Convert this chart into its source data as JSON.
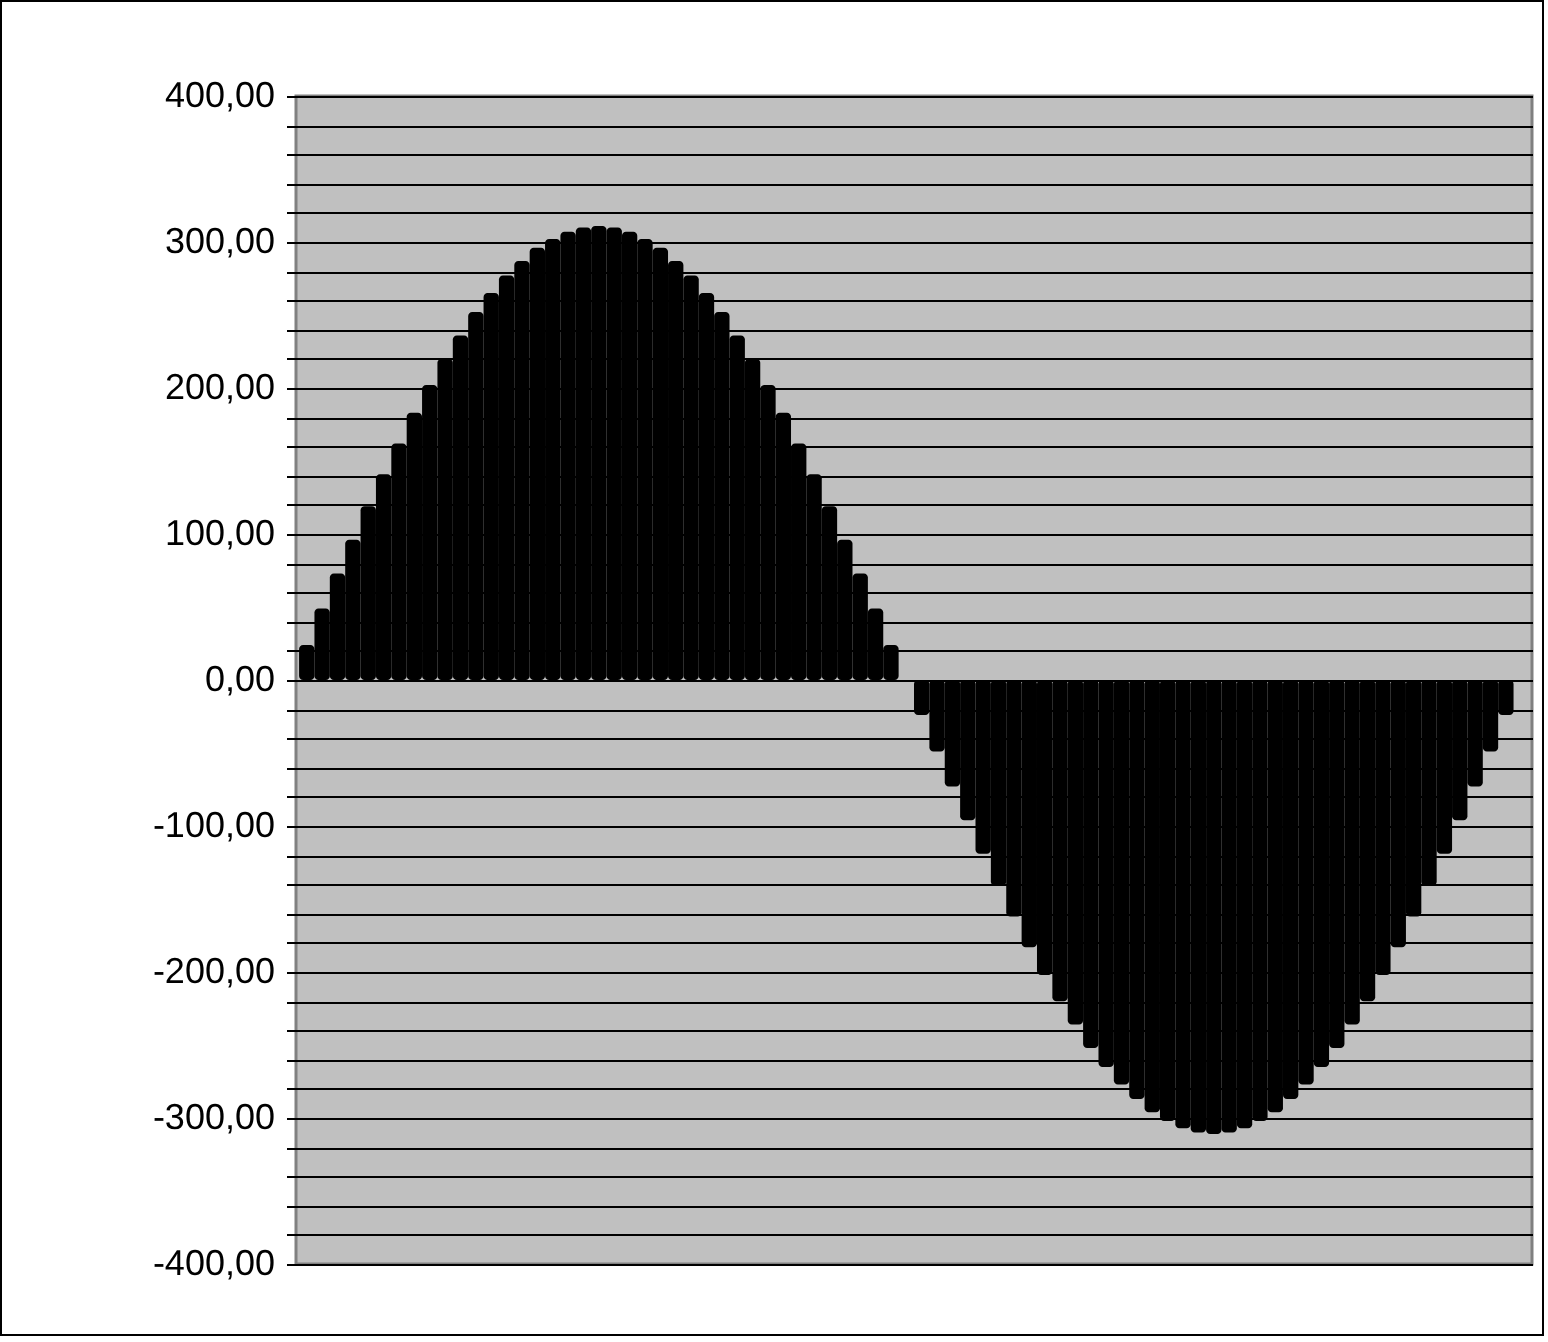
{
  "chart_data": {
    "type": "bar",
    "categories": [
      null,
      null,
      null,
      null,
      null,
      null,
      null,
      null,
      null,
      null,
      null,
      null,
      null,
      null,
      null,
      null,
      null,
      null,
      null,
      null,
      null,
      null,
      null,
      null,
      null,
      null,
      null,
      null,
      null,
      null,
      null,
      null,
      null,
      null,
      null,
      null,
      null,
      null,
      null,
      null,
      null,
      null,
      null,
      null,
      null,
      null,
      null,
      null,
      null,
      null,
      null,
      null,
      null,
      null,
      null,
      null,
      null,
      null,
      null,
      null,
      null,
      null,
      null,
      null,
      null,
      null,
      null,
      null,
      null,
      null,
      null,
      null,
      null,
      null,
      null,
      null,
      null,
      null,
      null,
      null
    ],
    "values": [
      24,
      49,
      73,
      96,
      119,
      141,
      162,
      183,
      202,
      220,
      236,
      252,
      265,
      277,
      287,
      296,
      302,
      307,
      310,
      311,
      310,
      307,
      302,
      296,
      287,
      277,
      265,
      252,
      236,
      220,
      202,
      183,
      162,
      141,
      119,
      96,
      73,
      49,
      24,
      0,
      -24,
      -49,
      -73,
      -96,
      -119,
      -141,
      -162,
      -183,
      -202,
      -220,
      -236,
      -252,
      -265,
      -277,
      -287,
      -296,
      -302,
      -307,
      -310,
      -311,
      -310,
      -307,
      -302,
      -296,
      -287,
      -277,
      -265,
      -252,
      -236,
      -220,
      -202,
      -183,
      -162,
      -141,
      -119,
      -96,
      -73,
      -49,
      -24,
      0
    ],
    "color": "#000000",
    "ylim": [
      -400,
      400
    ],
    "yticks": [
      {
        "value": -400,
        "label": "-400,00"
      },
      {
        "value": -380,
        "label": null
      },
      {
        "value": -360,
        "label": null
      },
      {
        "value": -340,
        "label": null
      },
      {
        "value": -320,
        "label": null
      },
      {
        "value": -300,
        "label": "-300,00"
      },
      {
        "value": -280,
        "label": null
      },
      {
        "value": -260,
        "label": null
      },
      {
        "value": -240,
        "label": null
      },
      {
        "value": -220,
        "label": null
      },
      {
        "value": -200,
        "label": "-200,00"
      },
      {
        "value": -180,
        "label": null
      },
      {
        "value": -160,
        "label": null
      },
      {
        "value": -140,
        "label": null
      },
      {
        "value": -120,
        "label": null
      },
      {
        "value": -100,
        "label": "-100,00"
      },
      {
        "value": -80,
        "label": null
      },
      {
        "value": -60,
        "label": null
      },
      {
        "value": -40,
        "label": null
      },
      {
        "value": -20,
        "label": null
      },
      {
        "value": 0,
        "label": "0,00"
      },
      {
        "value": 20,
        "label": null
      },
      {
        "value": 40,
        "label": null
      },
      {
        "value": 60,
        "label": null
      },
      {
        "value": 80,
        "label": null
      },
      {
        "value": 100,
        "label": "100,00"
      },
      {
        "value": 120,
        "label": null
      },
      {
        "value": 140,
        "label": null
      },
      {
        "value": 160,
        "label": null
      },
      {
        "value": 180,
        "label": null
      },
      {
        "value": 200,
        "label": "200,00"
      },
      {
        "value": 220,
        "label": null
      },
      {
        "value": 240,
        "label": null
      },
      {
        "value": 260,
        "label": null
      },
      {
        "value": 280,
        "label": null
      },
      {
        "value": 300,
        "label": "300,00"
      },
      {
        "value": 320,
        "label": null
      },
      {
        "value": 340,
        "label": null
      },
      {
        "value": 360,
        "label": null
      },
      {
        "value": 380,
        "label": null
      },
      {
        "value": 400,
        "label": "400,00"
      }
    ],
    "grid": "y",
    "tick_labels": "y"
  }
}
